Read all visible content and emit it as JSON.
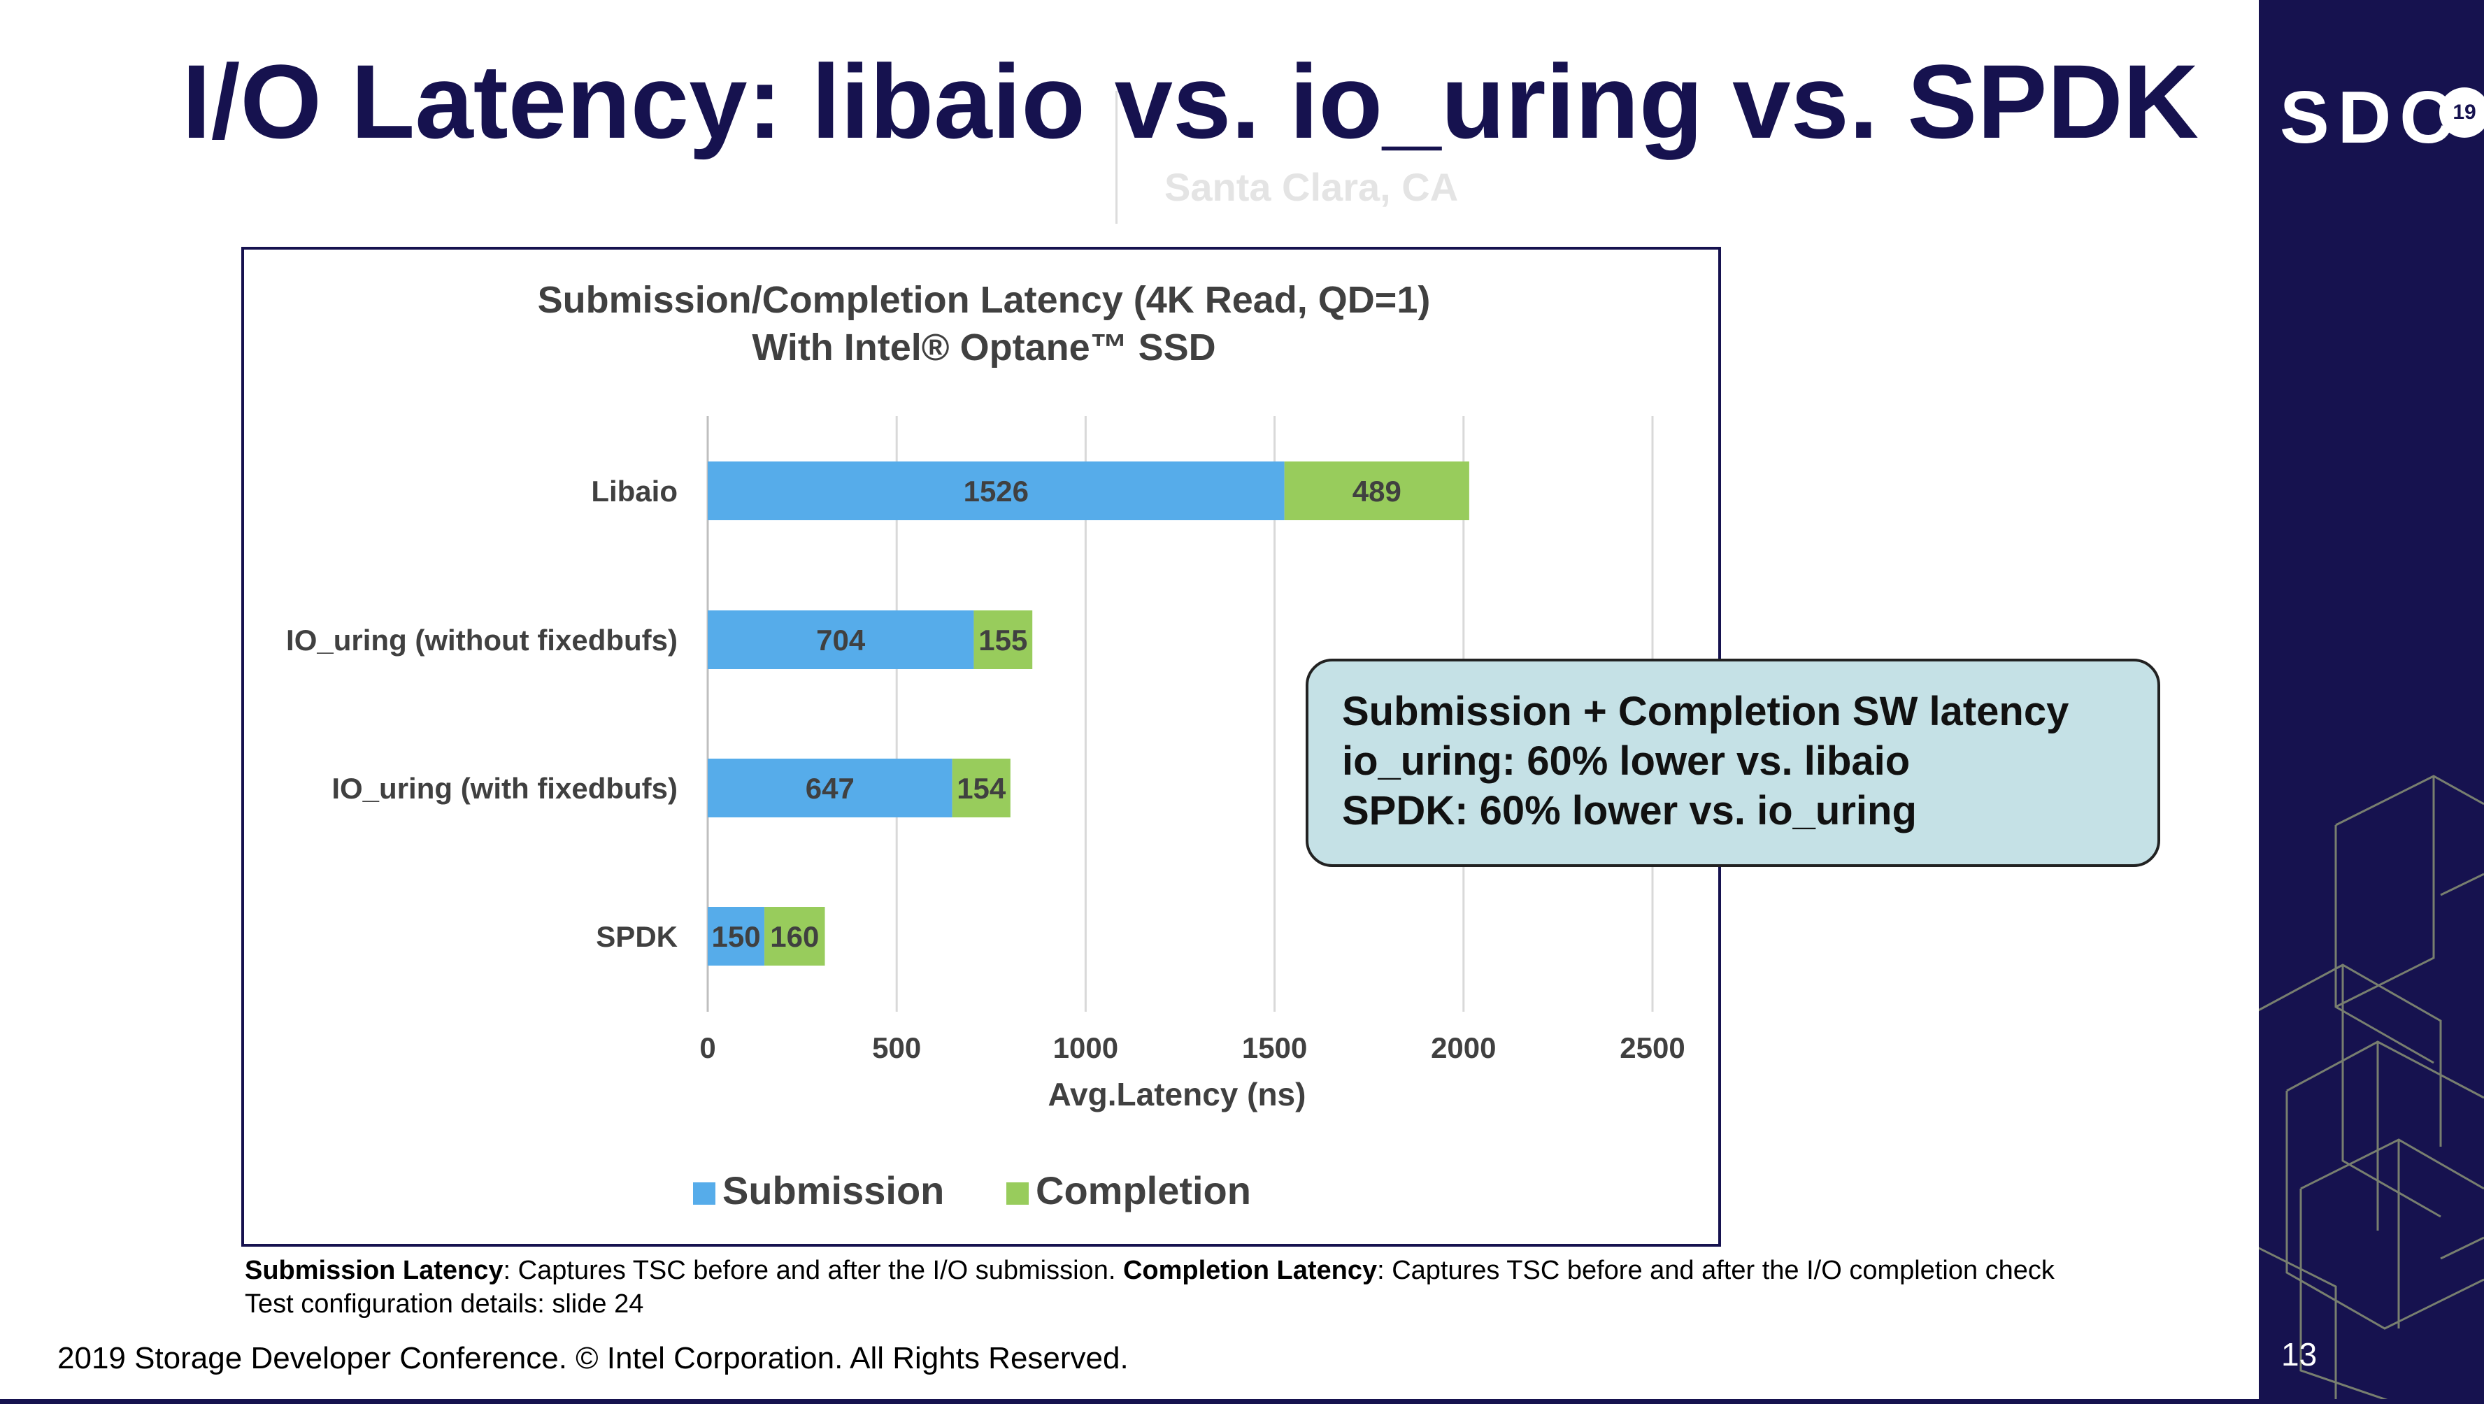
{
  "slide": {
    "title": "I/O Latency: libaio vs. io_uring vs. SPDK",
    "ghost_text": "Santa Clara, CA",
    "brand": "SDC",
    "brand_badge": "19",
    "slide_number": "13",
    "copyright": "2019 Storage Developer Conference. © Intel Corporation.  All Rights Reserved."
  },
  "callout": {
    "lines": [
      "Submission + Completion SW latency",
      "io_uring: 60% lower vs. libaio",
      "SPDK: 60% lower vs. io_uring"
    ]
  },
  "footnote": {
    "line1_bold_a": "Submission Latency",
    "line1_text_a": ": Captures TSC before and after the I/O submission. ",
    "line1_bold_b": "Completion Latency",
    "line1_text_b": ": Captures TSC before and after the I/O completion check",
    "line2": "Test configuration details: slide 24"
  },
  "colors": {
    "title": "#16124f",
    "submission": "#56acea",
    "completion": "#98cc5c",
    "chart_text": "#404040"
  },
  "chart_data": {
    "type": "bar",
    "orientation": "horizontal",
    "stacked": true,
    "title": "Submission/Completion Latency (4K Read, QD=1)",
    "subtitle": "With Intel® Optane™ SSD",
    "xlabel": "Avg.Latency (ns)",
    "ylabel": "",
    "xlim": [
      0,
      2500
    ],
    "xticks": [
      0,
      500,
      1000,
      1500,
      2000,
      2500
    ],
    "grid": true,
    "legend_position": "bottom",
    "categories": [
      "Libaio",
      "IO_uring (without fixedbufs)",
      "IO_uring (with fixedbufs)",
      "SPDK"
    ],
    "series": [
      {
        "name": "Submission",
        "values": [
          1526,
          704,
          647,
          150
        ],
        "color": "#56acea"
      },
      {
        "name": "Completion",
        "values": [
          489,
          155,
          154,
          160
        ],
        "color": "#98cc5c"
      }
    ]
  }
}
